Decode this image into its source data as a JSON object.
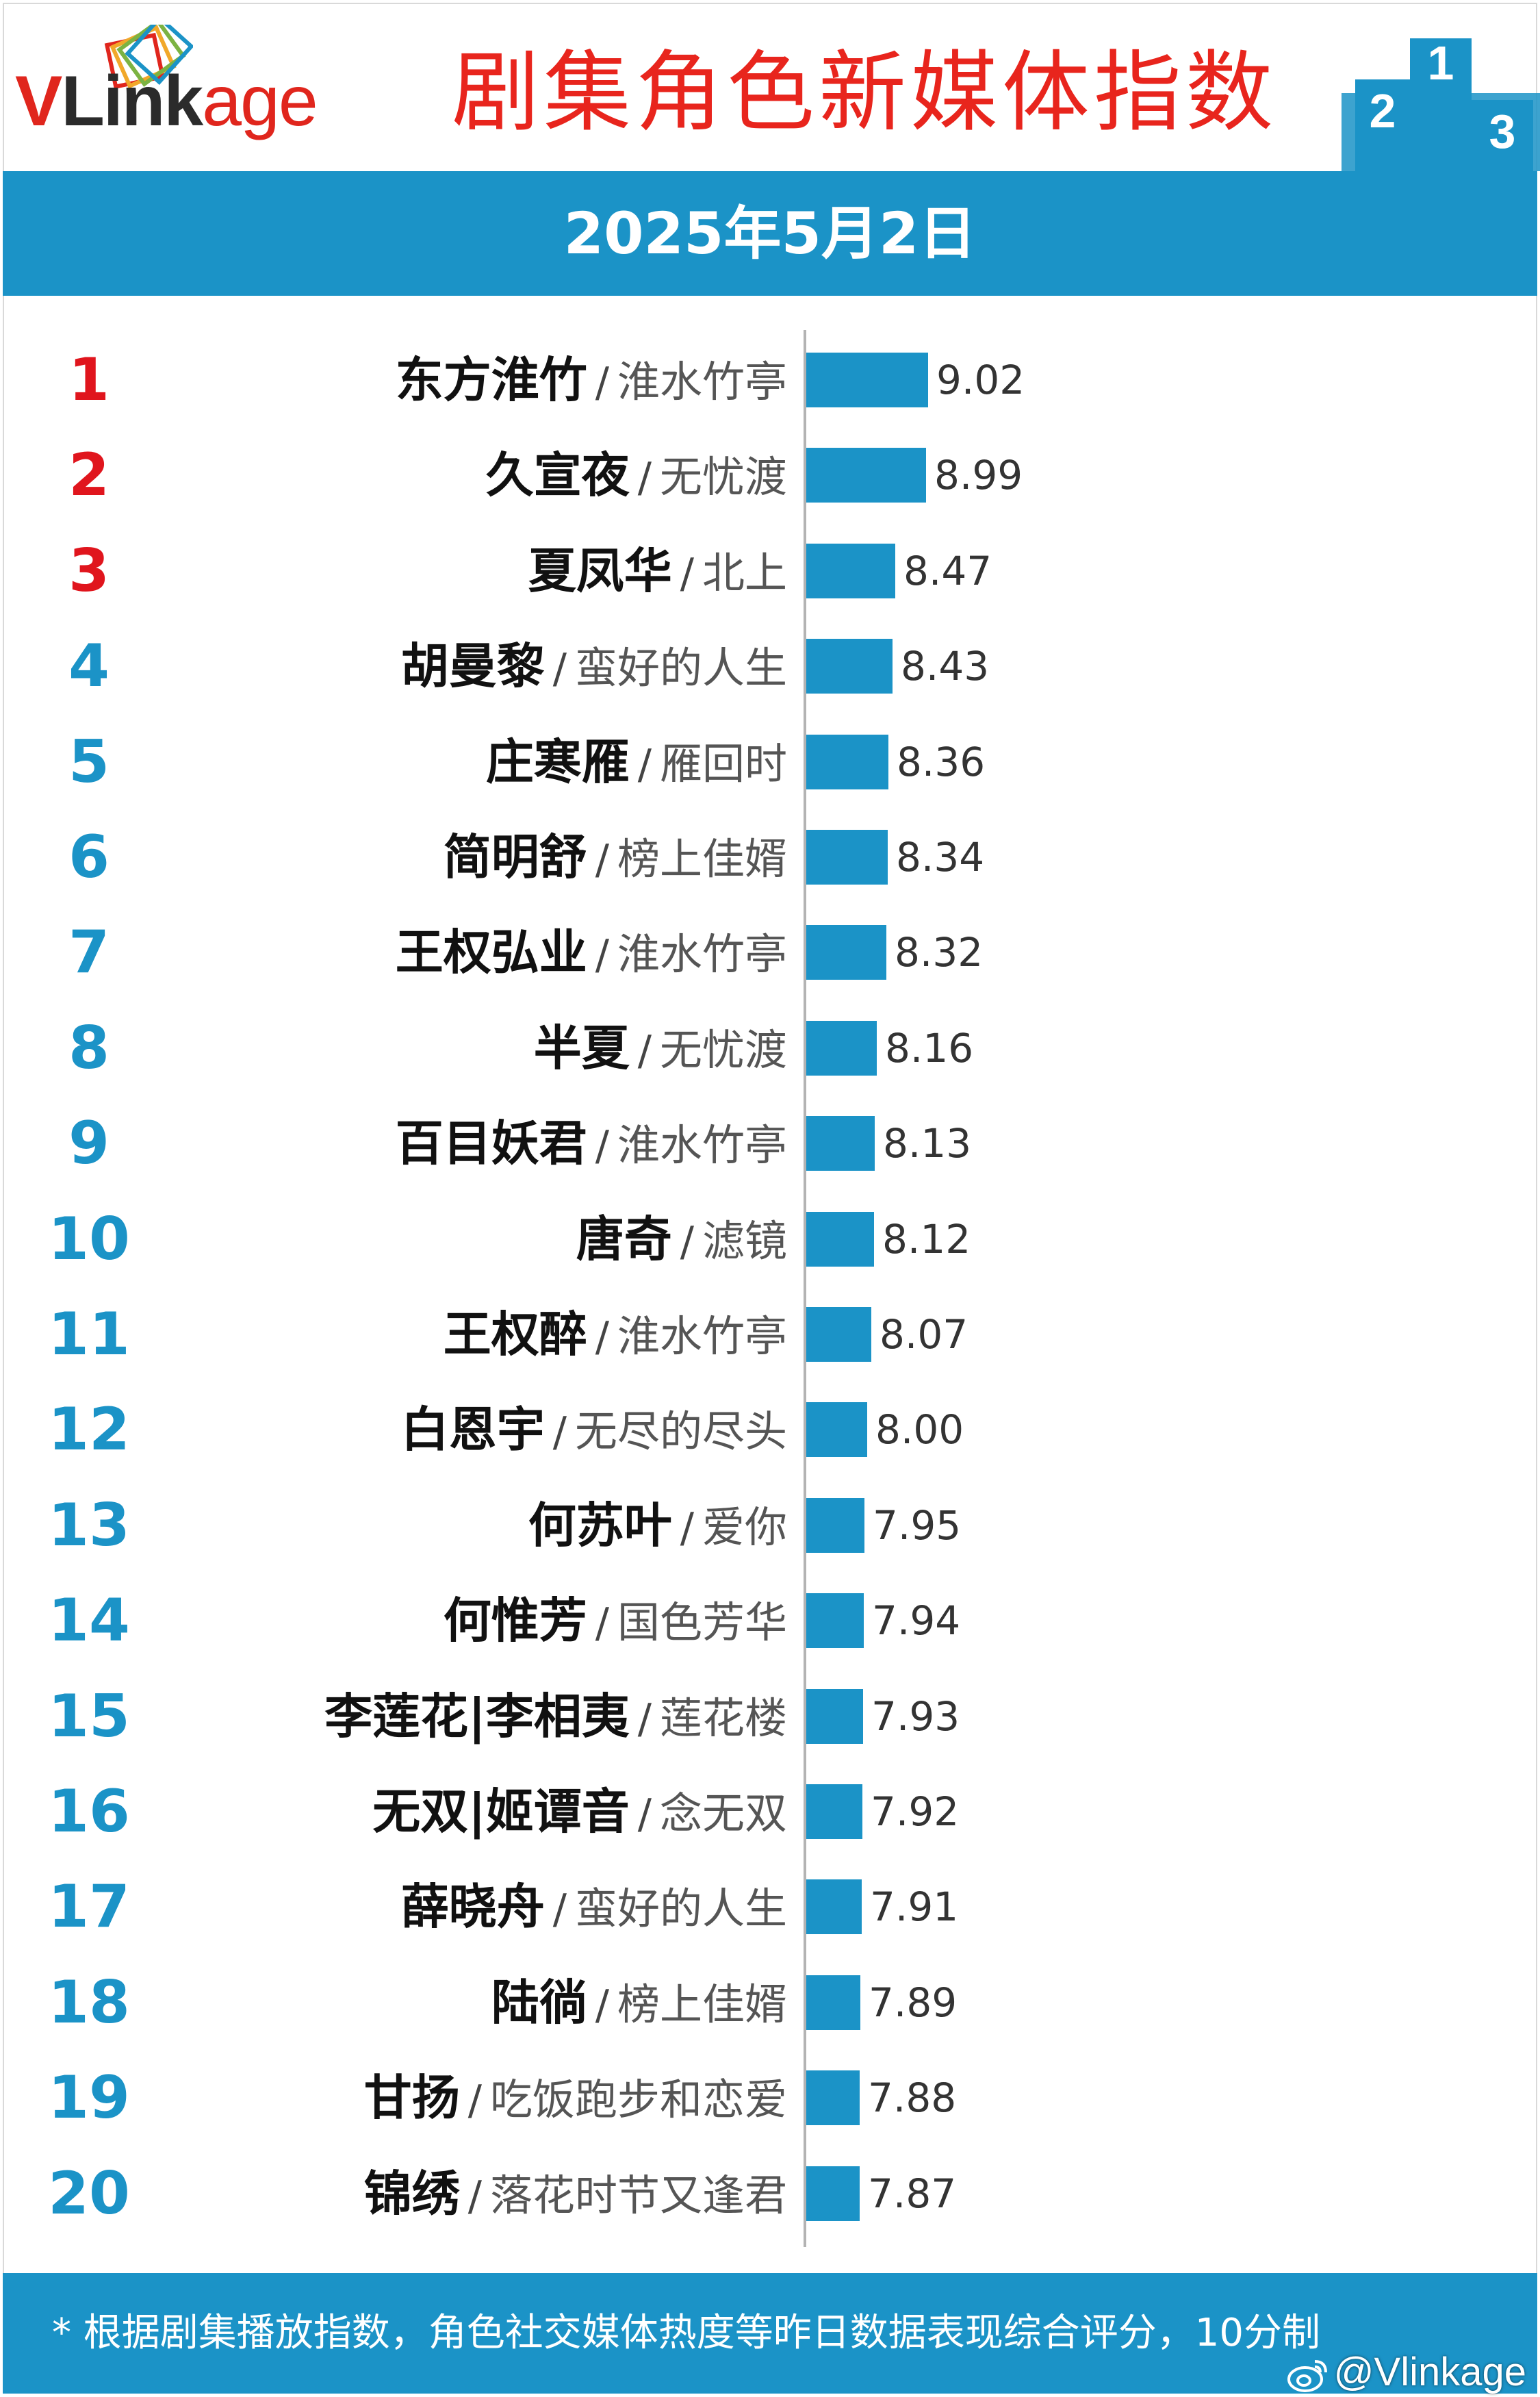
{
  "header": {
    "logo": {
      "v": "V",
      "link": "Link",
      "age": "age"
    },
    "title": "剧集角色新媒体指数",
    "podium": {
      "first": "1",
      "second": "2",
      "third": "3"
    }
  },
  "date": "2025年5月2日",
  "colors": {
    "accent": "#1b93c7",
    "title_red": "#e8251d",
    "rank_red": "#e0151d"
  },
  "chart_data": {
    "type": "bar",
    "orientation": "horizontal",
    "xlim": [
      0,
      10
    ],
    "rows": [
      {
        "rank": "1",
        "name": "东方淮竹",
        "drama": "淮水竹亭",
        "value": 9.02,
        "value_label": "9.02"
      },
      {
        "rank": "2",
        "name": "久宣夜",
        "drama": "无忧渡",
        "value": 8.99,
        "value_label": "8.99"
      },
      {
        "rank": "3",
        "name": "夏凤华",
        "drama": "北上",
        "value": 8.47,
        "value_label": "8.47"
      },
      {
        "rank": "4",
        "name": "胡曼黎",
        "drama": "蛮好的人生",
        "value": 8.43,
        "value_label": "8.43"
      },
      {
        "rank": "5",
        "name": "庄寒雁",
        "drama": "雁回时",
        "value": 8.36,
        "value_label": "8.36"
      },
      {
        "rank": "6",
        "name": "简明舒",
        "drama": "榜上佳婿",
        "value": 8.34,
        "value_label": "8.34"
      },
      {
        "rank": "7",
        "name": "王权弘业",
        "drama": "淮水竹亭",
        "value": 8.32,
        "value_label": "8.32"
      },
      {
        "rank": "8",
        "name": "半夏",
        "drama": "无忧渡",
        "value": 8.16,
        "value_label": "8.16"
      },
      {
        "rank": "9",
        "name": "百目妖君",
        "drama": "淮水竹亭",
        "value": 8.13,
        "value_label": "8.13"
      },
      {
        "rank": "10",
        "name": "唐奇",
        "drama": "滤镜",
        "value": 8.12,
        "value_label": "8.12"
      },
      {
        "rank": "11",
        "name": "王权醉",
        "drama": "淮水竹亭",
        "value": 8.07,
        "value_label": "8.07"
      },
      {
        "rank": "12",
        "name": "白恩宇",
        "drama": "无尽的尽头",
        "value": 8.0,
        "value_label": "8.00"
      },
      {
        "rank": "13",
        "name": "何苏叶",
        "drama": "爱你",
        "value": 7.95,
        "value_label": "7.95"
      },
      {
        "rank": "14",
        "name": "何惟芳",
        "drama": "国色芳华",
        "value": 7.94,
        "value_label": "7.94"
      },
      {
        "rank": "15",
        "name": "李莲花|李相夷",
        "drama": "莲花楼",
        "value": 7.93,
        "value_label": "7.93"
      },
      {
        "rank": "16",
        "name": "无双|姬谭音",
        "drama": "念无双",
        "value": 7.92,
        "value_label": "7.92"
      },
      {
        "rank": "17",
        "name": "薛晓舟",
        "drama": "蛮好的人生",
        "value": 7.91,
        "value_label": "7.91"
      },
      {
        "rank": "18",
        "name": "陆徜",
        "drama": "榜上佳婿",
        "value": 7.89,
        "value_label": "7.89"
      },
      {
        "rank": "19",
        "name": "甘扬",
        "drama": "吃饭跑步和恋爱",
        "value": 7.88,
        "value_label": "7.88"
      },
      {
        "rank": "20",
        "name": "锦绣",
        "drama": "落花时节又逢君",
        "value": 7.87,
        "value_label": "7.87"
      }
    ]
  },
  "footer": {
    "note": "* 根据剧集播放指数，角色社交媒体热度等昨日数据表现综合评分，10分制",
    "watermark": "@Vlinkage"
  }
}
